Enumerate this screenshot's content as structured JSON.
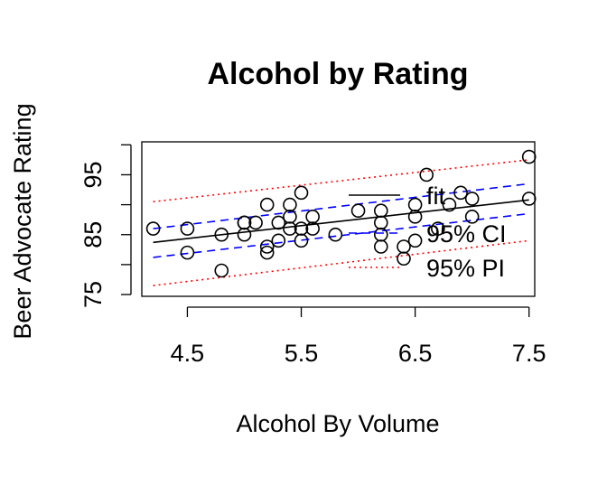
{
  "chart_data": {
    "type": "scatter",
    "title": "Alcohol by Rating",
    "xlabel": "Alcohol By Volume",
    "ylabel": "Beer Advocate Rating",
    "xlim": [
      4.1,
      7.55
    ],
    "ylim": [
      74.7,
      100.5
    ],
    "xticks": [
      4.5,
      5.5,
      6.5,
      7.5
    ],
    "xtick_labels": [
      "4.5",
      "5.5",
      "6.5",
      "7.5"
    ],
    "yticks": [
      75,
      80,
      85,
      90,
      95,
      100
    ],
    "ytick_labels": [
      "75",
      "",
      "85",
      "",
      "95",
      ""
    ],
    "grid": false,
    "legend_position": "right",
    "legend": [
      {
        "label": "fit",
        "color": "#000000",
        "dash": "solid"
      },
      {
        "label": "95% CI",
        "color": "#0000ff",
        "dash": "dashed"
      },
      {
        "label": "95% PI",
        "color": "#ff0000",
        "dash": "dotted"
      }
    ],
    "points": [
      [
        4.2,
        86
      ],
      [
        4.5,
        86
      ],
      [
        4.5,
        82
      ],
      [
        4.8,
        79
      ],
      [
        4.8,
        85
      ],
      [
        5.0,
        87
      ],
      [
        5.0,
        87
      ],
      [
        5.0,
        85
      ],
      [
        5.1,
        87
      ],
      [
        5.2,
        90
      ],
      [
        5.2,
        83
      ],
      [
        5.2,
        82
      ],
      [
        5.3,
        87
      ],
      [
        5.3,
        84
      ],
      [
        5.4,
        90
      ],
      [
        5.4,
        88
      ],
      [
        5.4,
        86
      ],
      [
        5.5,
        92
      ],
      [
        5.5,
        86
      ],
      [
        5.5,
        84
      ],
      [
        5.6,
        88
      ],
      [
        5.6,
        86
      ],
      [
        5.8,
        85
      ],
      [
        6.0,
        89
      ],
      [
        6.2,
        89
      ],
      [
        6.2,
        87
      ],
      [
        6.2,
        85
      ],
      [
        6.2,
        83
      ],
      [
        6.4,
        83
      ],
      [
        6.4,
        81
      ],
      [
        6.5,
        90
      ],
      [
        6.5,
        88
      ],
      [
        6.5,
        84
      ],
      [
        6.6,
        95
      ],
      [
        6.7,
        86
      ],
      [
        6.8,
        90
      ],
      [
        6.9,
        92
      ],
      [
        7.0,
        91
      ],
      [
        7.0,
        88
      ],
      [
        7.5,
        98
      ],
      [
        7.5,
        91
      ]
    ],
    "fit_line": {
      "x": [
        4.2,
        7.5
      ],
      "y": [
        83.7,
        90.8
      ]
    },
    "ci_lower": {
      "x": [
        4.2,
        7.5
      ],
      "y": [
        81.2,
        88.5
      ]
    },
    "ci_upper": {
      "x": [
        4.2,
        7.5
      ],
      "y": [
        86.0,
        93.5
      ]
    },
    "pi_lower": {
      "x": [
        4.2,
        7.5
      ],
      "y": [
        76.5,
        84.0
      ]
    },
    "pi_upper": {
      "x": [
        4.2,
        7.5
      ],
      "y": [
        90.5,
        97.5
      ]
    }
  }
}
